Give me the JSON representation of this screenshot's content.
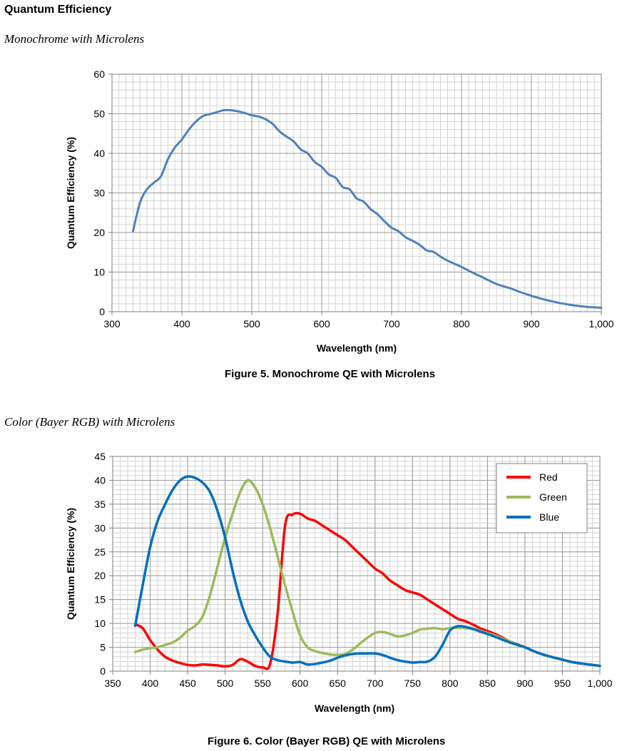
{
  "heading": "Quantum Efficiency",
  "section1_subtitle": "Monochrome with Microlens",
  "section2_subtitle": "Color (Bayer RGB) with Microlens",
  "captions": {
    "fig5": "Figure 5. Monochrome QE with Microlens",
    "fig6": "Figure 6. Color (Bayer RGB) QE with Microlens"
  },
  "chart_data": [
    {
      "type": "line",
      "title": "",
      "xlabel": "Wavelength (nm)",
      "ylabel": "Quantum Efficiency (%)",
      "xlim": [
        300,
        1000
      ],
      "ylim": [
        0,
        60
      ],
      "xticks": [
        300,
        400,
        500,
        600,
        700,
        800,
        900,
        1000
      ],
      "xtick_labels": [
        "300",
        "400",
        "500",
        "600",
        "700",
        "800",
        "900",
        "1,000"
      ],
      "yticks": [
        0,
        10,
        20,
        30,
        40,
        50,
        60
      ],
      "grid": true,
      "legend": "none",
      "series": [
        {
          "color": "#4f81bd",
          "x": [
            330,
            340,
            350,
            360,
            370,
            380,
            390,
            400,
            410,
            420,
            430,
            440,
            450,
            460,
            470,
            480,
            490,
            500,
            510,
            520,
            530,
            540,
            550,
            560,
            570,
            580,
            590,
            600,
            610,
            620,
            630,
            640,
            650,
            660,
            670,
            680,
            690,
            700,
            710,
            720,
            730,
            740,
            750,
            760,
            770,
            780,
            790,
            800,
            810,
            820,
            830,
            840,
            850,
            860,
            870,
            880,
            890,
            900,
            910,
            920,
            930,
            940,
            950,
            960,
            970,
            980,
            990,
            1000
          ],
          "y": [
            20.3,
            27.5,
            30.9,
            32.6,
            34.2,
            38.5,
            41.5,
            43.5,
            46.0,
            48.0,
            49.4,
            49.9,
            50.4,
            50.9,
            50.9,
            50.6,
            50.2,
            49.6,
            49.3,
            48.6,
            47.4,
            45.5,
            44.2,
            43.0,
            41.0,
            40.0,
            37.8,
            36.6,
            34.7,
            33.8,
            31.5,
            30.9,
            28.6,
            27.8,
            25.9,
            24.6,
            22.8,
            21.2,
            20.3,
            18.8,
            17.9,
            16.9,
            15.5,
            15.1,
            13.9,
            12.9,
            12.1,
            11.3,
            10.4,
            9.5,
            8.7,
            7.8,
            7.0,
            6.4,
            5.9,
            5.2,
            4.6,
            4.0,
            3.5,
            3.0,
            2.6,
            2.2,
            1.9,
            1.6,
            1.4,
            1.2,
            1.1,
            1.0
          ]
        }
      ]
    },
    {
      "type": "line",
      "title": "",
      "xlabel": "Wavelength (nm)",
      "ylabel": "Quantum Efficiency (%)",
      "xlim": [
        350,
        1000
      ],
      "ylim": [
        0,
        45
      ],
      "xticks": [
        350,
        400,
        450,
        500,
        550,
        600,
        650,
        700,
        750,
        800,
        850,
        900,
        950,
        1000
      ],
      "xtick_labels": [
        "350",
        "400",
        "450",
        "500",
        "550",
        "600",
        "650",
        "700",
        "750",
        "800",
        "850",
        "900",
        "950",
        "1,000"
      ],
      "yticks": [
        0,
        5,
        10,
        15,
        20,
        25,
        30,
        35,
        40,
        45
      ],
      "grid": true,
      "legend": "top-right",
      "series": [
        {
          "name": "Red",
          "color": "#ff0000",
          "x": [
            380,
            390,
            400,
            410,
            420,
            430,
            440,
            450,
            460,
            470,
            480,
            490,
            500,
            510,
            520,
            530,
            540,
            550,
            560,
            570,
            580,
            590,
            600,
            610,
            620,
            630,
            640,
            650,
            660,
            670,
            680,
            690,
            700,
            710,
            720,
            730,
            740,
            750,
            760,
            770,
            780,
            790,
            800,
            810,
            820,
            830,
            840,
            850,
            860,
            870,
            880,
            890,
            900,
            910,
            920,
            930,
            940,
            950,
            960,
            970,
            980,
            990,
            1000
          ],
          "y": [
            9.8,
            9.0,
            6.5,
            4.5,
            3.0,
            2.2,
            1.7,
            1.3,
            1.2,
            1.4,
            1.3,
            1.2,
            1.0,
            1.3,
            2.5,
            2.0,
            1.1,
            0.8,
            1.5,
            12.0,
            30.5,
            32.8,
            33.0,
            32.0,
            31.5,
            30.5,
            29.5,
            28.5,
            27.5,
            26.0,
            24.5,
            23.0,
            21.5,
            20.5,
            19.0,
            18.0,
            17.0,
            16.5,
            16.0,
            15.0,
            14.0,
            13.0,
            12.0,
            11.0,
            10.5,
            9.8,
            9.0,
            8.4,
            7.8,
            7.0,
            6.2,
            5.6,
            5.0,
            4.3,
            3.7,
            3.2,
            2.8,
            2.4,
            2.0,
            1.7,
            1.5,
            1.3,
            1.1
          ]
        },
        {
          "name": "Green",
          "color": "#9bbb59",
          "x": [
            380,
            390,
            400,
            410,
            420,
            430,
            440,
            450,
            460,
            470,
            480,
            490,
            500,
            510,
            520,
            530,
            540,
            550,
            560,
            570,
            580,
            590,
            600,
            610,
            620,
            630,
            640,
            650,
            660,
            670,
            680,
            690,
            700,
            710,
            720,
            730,
            740,
            750,
            760,
            770,
            780,
            790,
            800,
            810,
            820,
            830,
            840,
            850,
            860,
            870,
            880,
            890,
            900,
            910,
            920,
            930,
            940,
            950,
            960,
            970,
            980,
            990,
            1000
          ],
          "y": [
            4.0,
            4.5,
            4.8,
            5.0,
            5.5,
            6.0,
            7.0,
            8.5,
            9.5,
            11.5,
            16.0,
            22.0,
            28.0,
            33.0,
            37.5,
            40.0,
            38.5,
            35.0,
            30.0,
            24.0,
            18.0,
            12.5,
            7.5,
            5.0,
            4.2,
            3.8,
            3.5,
            3.4,
            3.6,
            4.5,
            5.8,
            7.0,
            8.0,
            8.2,
            7.8,
            7.3,
            7.5,
            8.0,
            8.7,
            8.9,
            9.0,
            8.8,
            9.0,
            9.1,
            9.0,
            8.8,
            8.5,
            8.0,
            7.5,
            6.8,
            6.2,
            5.5,
            5.0,
            4.3,
            3.7,
            3.2,
            2.8,
            2.4,
            2.0,
            1.7,
            1.5,
            1.3,
            1.1
          ]
        },
        {
          "name": "Blue",
          "color": "#0070c0",
          "x": [
            380,
            390,
            400,
            410,
            420,
            430,
            440,
            450,
            460,
            470,
            480,
            490,
            500,
            510,
            520,
            530,
            540,
            550,
            560,
            570,
            580,
            590,
            600,
            610,
            620,
            630,
            640,
            650,
            660,
            670,
            680,
            690,
            700,
            710,
            720,
            730,
            740,
            750,
            760,
            770,
            780,
            790,
            800,
            810,
            820,
            830,
            840,
            850,
            860,
            870,
            880,
            890,
            900,
            910,
            920,
            930,
            940,
            950,
            960,
            970,
            980,
            990,
            1000
          ],
          "y": [
            9.5,
            18.0,
            26.0,
            31.5,
            35.0,
            38.0,
            40.0,
            40.8,
            40.5,
            39.5,
            37.5,
            33.5,
            28.0,
            21.0,
            15.0,
            10.5,
            7.5,
            5.0,
            3.0,
            2.3,
            2.0,
            1.8,
            1.9,
            1.4,
            1.5,
            1.8,
            2.2,
            2.8,
            3.3,
            3.6,
            3.7,
            3.7,
            3.7,
            3.4,
            2.8,
            2.3,
            2.0,
            1.8,
            1.9,
            2.0,
            3.0,
            5.5,
            8.5,
            9.4,
            9.3,
            8.9,
            8.3,
            7.8,
            7.2,
            6.6,
            6.0,
            5.5,
            5.0,
            4.3,
            3.7,
            3.2,
            2.8,
            2.4,
            2.0,
            1.7,
            1.5,
            1.3,
            1.1
          ]
        }
      ]
    }
  ]
}
